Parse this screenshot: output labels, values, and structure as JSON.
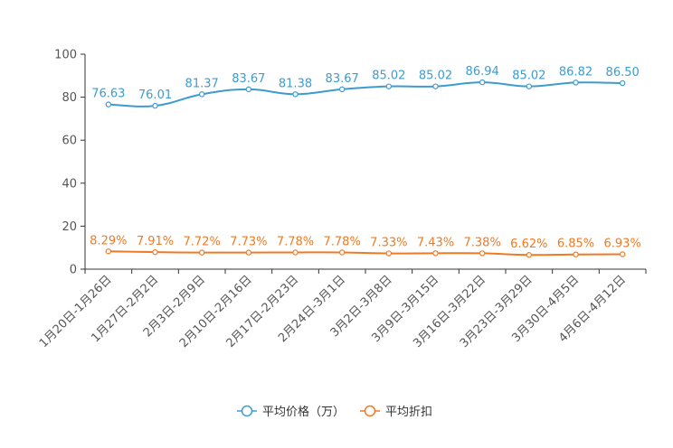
{
  "chart_data": {
    "type": "line",
    "categories": [
      "1月20日-1月26日",
      "1月27日-2月2日",
      "2月3日-2月9日",
      "2月10日-2月16日",
      "2月17日-2月23日",
      "2月24日-3月1日",
      "3月2日-3月8日",
      "3月9日-3月15日",
      "3月16日-3月22日",
      "3月23日-3月29日",
      "3月30日-4月5日",
      "4月6日-4月12日"
    ],
    "ylim": [
      0,
      100
    ],
    "yticks": [
      0,
      20,
      40,
      60,
      80,
      100
    ],
    "series": [
      {
        "name": "平均价格（万）",
        "color": "#3d9bd0",
        "values": [
          76.63,
          76.01,
          81.37,
          83.67,
          81.38,
          83.67,
          85.02,
          85.02,
          86.94,
          85.02,
          86.82,
          86.5
        ],
        "labels": [
          "76.63",
          "76.01",
          "81.37",
          "83.67",
          "81.38",
          "83.67",
          "85.02",
          "85.02",
          "86.94",
          "85.02",
          "86.82",
          "86.50"
        ]
      },
      {
        "name": "平均折扣",
        "color": "#f07a23",
        "values": [
          8.29,
          7.91,
          7.72,
          7.73,
          7.78,
          7.78,
          7.33,
          7.43,
          7.38,
          6.62,
          6.85,
          6.93
        ],
        "labels": [
          "8.29%",
          "7.91%",
          "7.72%",
          "7.73%",
          "7.78%",
          "7.78%",
          "7.33%",
          "7.43%",
          "7.38%",
          "6.62%",
          "6.85%",
          "6.93%"
        ]
      }
    ],
    "legend_position": "bottom-center"
  }
}
